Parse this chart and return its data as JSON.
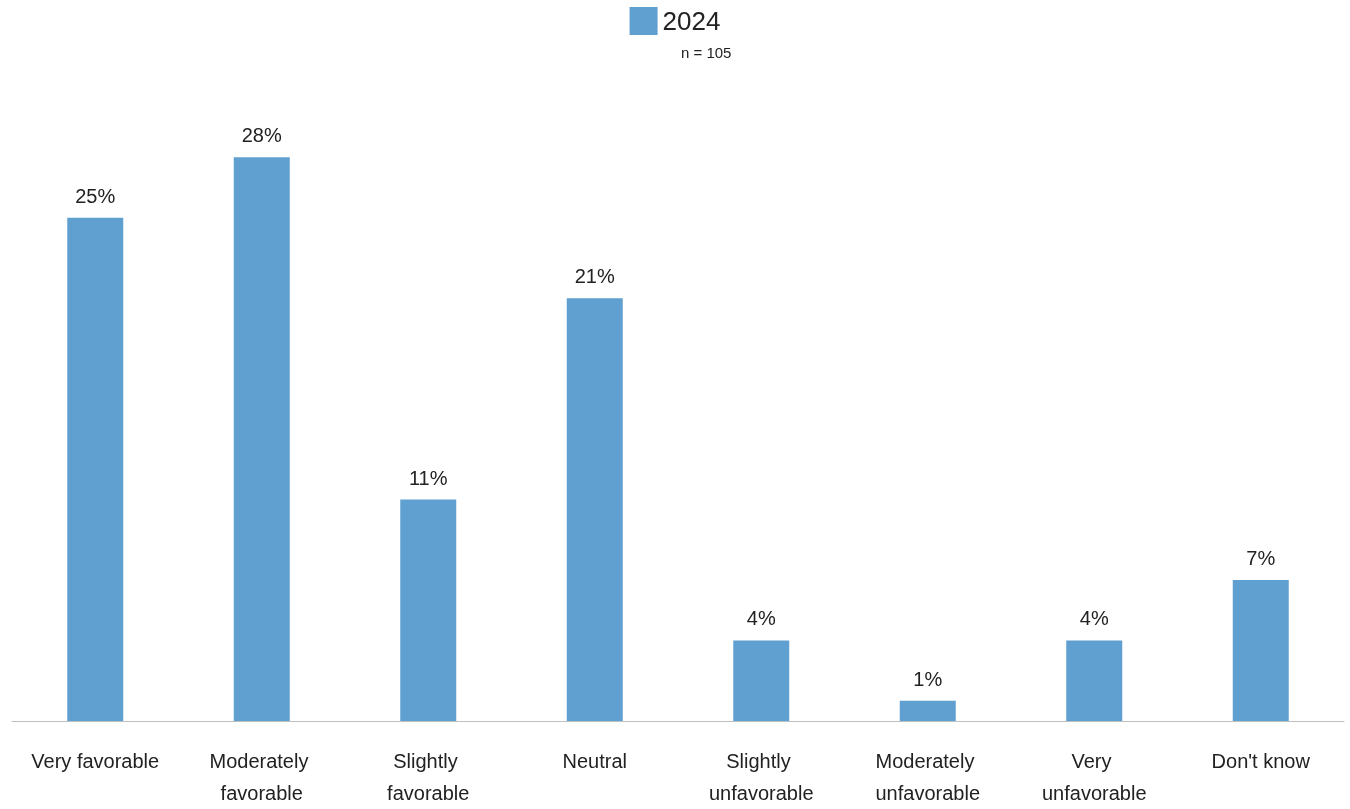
{
  "chart_data": {
    "type": "bar",
    "subtitle": "n = 105",
    "categories": [
      "Very favorable",
      "Moderately favorable",
      "Slightly favorable",
      "Neutral",
      "Slightly unfavorable",
      "Moderately unfavorable",
      "Very unfavorable",
      "Don't know"
    ],
    "series": [
      {
        "name": "2024",
        "color": "#5fa0d0",
        "values": [
          25,
          28,
          11,
          21,
          4,
          1,
          4,
          7
        ],
        "value_labels": [
          "25%",
          "28%",
          "11%",
          "21%",
          "4%",
          "1%",
          "4%",
          "7%"
        ]
      }
    ],
    "tick_labels": "x",
    "legend": "top"
  }
}
